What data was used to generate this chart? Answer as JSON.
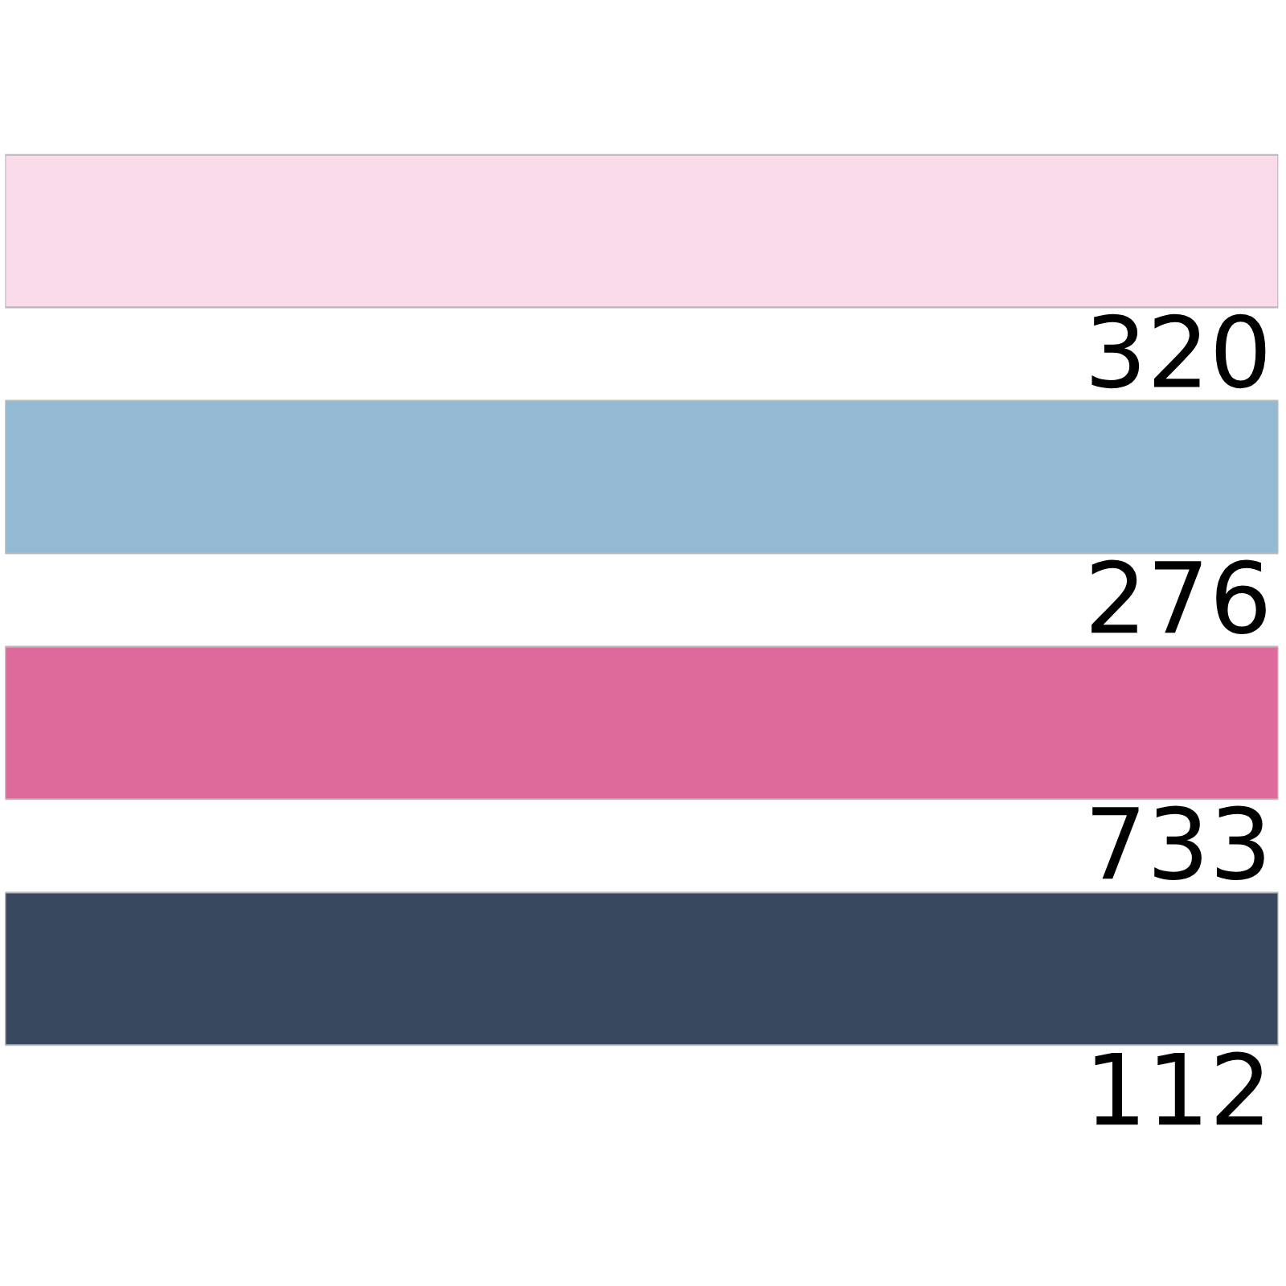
{
  "chart_data": {
    "type": "other",
    "categories": [
      null,
      null,
      null,
      null
    ],
    "values": [
      320,
      276,
      733,
      112
    ],
    "colors": [
      "#f9dbea",
      "#94b9d3",
      "#de699b",
      "#38485f"
    ],
    "data_labels": true
  }
}
